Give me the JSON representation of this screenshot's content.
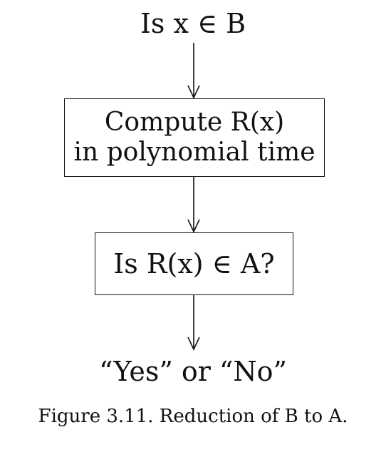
{
  "input_label": "Is x ∈ B",
  "compute_box": {
    "line1": "Compute R(x)",
    "line2": "in polynomial time"
  },
  "question_box": {
    "label": "Is R(x) ∈ A?"
  },
  "output_label": "“Yes” or “No”",
  "caption": "Figure 3.11. Reduction of B to A."
}
